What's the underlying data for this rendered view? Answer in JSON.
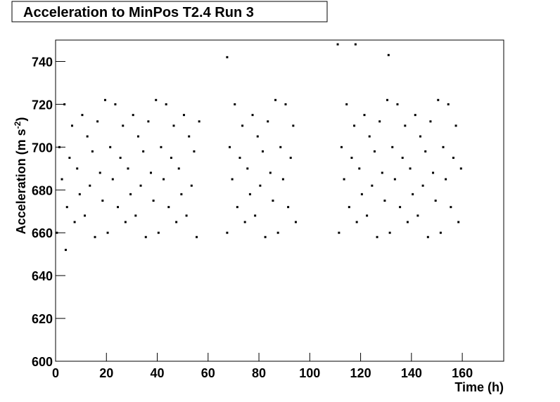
{
  "chart_data": {
    "type": "scatter",
    "title": "Acceleration to MinPos T2.4 Run 3",
    "x_label": "Time (h)",
    "y_label": [
      "Acceleration (m s",
      "-2",
      ")"
    ],
    "color": "#000000",
    "xlim": [
      0,
      176.3
    ],
    "ylim": [
      600,
      750
    ],
    "xticks": [
      0,
      20,
      40,
      60,
      80,
      100,
      120,
      140,
      160
    ],
    "yticks": [
      600,
      620,
      640,
      660,
      680,
      700,
      720,
      740
    ],
    "x": [
      0.5,
      1.5,
      2.5,
      3.5,
      4.5,
      5.5,
      6.5,
      7.5,
      8.5,
      9.5,
      10.5,
      11.5,
      12.5,
      13.5,
      14.5,
      15.5,
      16.5,
      17.5,
      18.5,
      19.5,
      20.5,
      21.5,
      22.5,
      23.5,
      24.5,
      25.5,
      26.5,
      27.5,
      28.5,
      29.5,
      30.5,
      31.5,
      32.5,
      33.5,
      34.5,
      35.5,
      36.5,
      37.5,
      38.5,
      39.5,
      40.5,
      41.5,
      42.5,
      43.5,
      44.5,
      45.5,
      46.5,
      47.5,
      48.5,
      49.5,
      50.5,
      51.5,
      52.5,
      53.5,
      54.5,
      55.5,
      56.5,
      67.5,
      68.5,
      69.5,
      70.5,
      71.5,
      72.5,
      73.5,
      74.5,
      75.5,
      76.5,
      77.5,
      78.5,
      79.5,
      80.5,
      81.5,
      82.5,
      83.5,
      84.5,
      85.5,
      86.5,
      87.5,
      88.5,
      89.5,
      90.5,
      91.5,
      92.5,
      93.5,
      94.5,
      111.5,
      112.5,
      113.5,
      114.5,
      115.5,
      116.5,
      117.5,
      118.5,
      119.5,
      120.5,
      121.5,
      122.5,
      123.5,
      124.5,
      125.5,
      126.5,
      127.5,
      128.5,
      129.5,
      130.5,
      131.5,
      132.5,
      133.5,
      134.5,
      135.5,
      136.5,
      137.5,
      138.5,
      139.5,
      140.5,
      141.5,
      142.5,
      143.5,
      144.5,
      145.5,
      146.5,
      147.5,
      148.5,
      149.5,
      150.5,
      151.5,
      152.5,
      153.5,
      154.5,
      155.5,
      156.5,
      157.5,
      158.5,
      159.5,
      4,
      67.5,
      111,
      118,
      131
    ],
    "values": [
      660,
      700,
      685,
      720,
      672,
      695,
      710,
      665,
      690,
      678,
      715,
      668,
      705,
      682,
      698,
      658,
      712,
      688,
      675,
      722,
      660,
      700,
      685,
      720,
      672,
      695,
      710,
      665,
      690,
      678,
      715,
      668,
      705,
      682,
      698,
      658,
      712,
      688,
      675,
      722,
      660,
      700,
      685,
      720,
      672,
      695,
      710,
      665,
      690,
      678,
      715,
      668,
      705,
      682,
      698,
      658,
      712,
      660,
      700,
      685,
      720,
      672,
      695,
      710,
      665,
      690,
      678,
      715,
      668,
      705,
      682,
      698,
      658,
      712,
      688,
      675,
      722,
      660,
      700,
      685,
      720,
      672,
      695,
      710,
      665,
      660,
      700,
      685,
      720,
      672,
      695,
      710,
      665,
      690,
      678,
      715,
      668,
      705,
      682,
      698,
      658,
      712,
      688,
      675,
      722,
      660,
      700,
      685,
      720,
      672,
      695,
      710,
      665,
      690,
      678,
      715,
      668,
      705,
      682,
      698,
      658,
      712,
      688,
      675,
      722,
      660,
      700,
      685,
      720,
      672,
      695,
      710,
      665,
      690,
      652,
      742,
      748,
      748,
      743
    ]
  }
}
